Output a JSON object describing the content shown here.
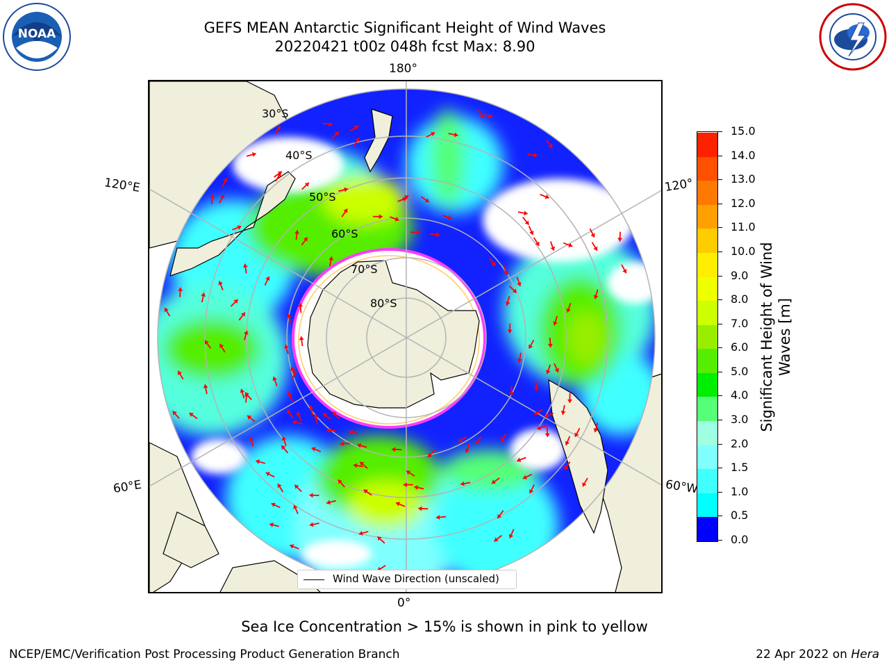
{
  "header": {
    "title_line1": "GEFS MEAN Antarctic Significant Height of Wind Waves",
    "title_line2": "20220421 t00z 048h fcst   Max: 8.90"
  },
  "logos": {
    "noaa_text": "NOAA",
    "noaa_ring_text": "NATIONAL OCEANIC AND ATMOSPHERIC ADMINISTRATION · U.S. DEPARTMENT OF COMMERCE",
    "nws_ring_text": "NATIONAL WEATHER SERVICE"
  },
  "map": {
    "lon_labels": {
      "top": "180°",
      "bottom": "0°",
      "left_upper": "120°E",
      "left_lower": "60°E",
      "right_upper": "120°",
      "right_lower": "60°W"
    },
    "lat_labels": [
      "30°S",
      "40°S",
      "50°S",
      "60°S",
      "70°S",
      "80°S"
    ],
    "legend_label": "Wind Wave Direction (unscaled)",
    "colors": {
      "land": "#efefdc",
      "ocean_default": "#ffffff",
      "arrow": "#ff0000",
      "grid": "#b3b3b3",
      "ice_edge": "#ff3cff"
    }
  },
  "colorbar": {
    "label": "Significant Height of Wind Waves [m]",
    "ticks": [
      "0.0",
      "0.5",
      "1.0",
      "1.5",
      "2.0",
      "3.0",
      "4.0",
      "5.0",
      "6.0",
      "7.0",
      "8.0",
      "9.0",
      "10.0",
      "11.0",
      "12.0",
      "13.0",
      "14.0",
      "15.0"
    ],
    "colors": [
      "#0000ff",
      "#0080ff",
      "#00ffff",
      "#40ffff",
      "#80ffff",
      "#a0ffe0",
      "#55ff77",
      "#00ee00",
      "#55ee00",
      "#99ee00",
      "#ccff00",
      "#eeff00",
      "#ffee00",
      "#ffcc00",
      "#ffa000",
      "#ff7800",
      "#ff5000",
      "#ff2000",
      "#ff0000"
    ]
  },
  "caption": "Sea Ice Concentration > 15% is shown in pink to yellow",
  "footer": {
    "left": "NCEP/EMC/Verification Post Processing Product Generation Branch",
    "right_prefix": "22 Apr 2022 on ",
    "right_host": "Hera"
  }
}
